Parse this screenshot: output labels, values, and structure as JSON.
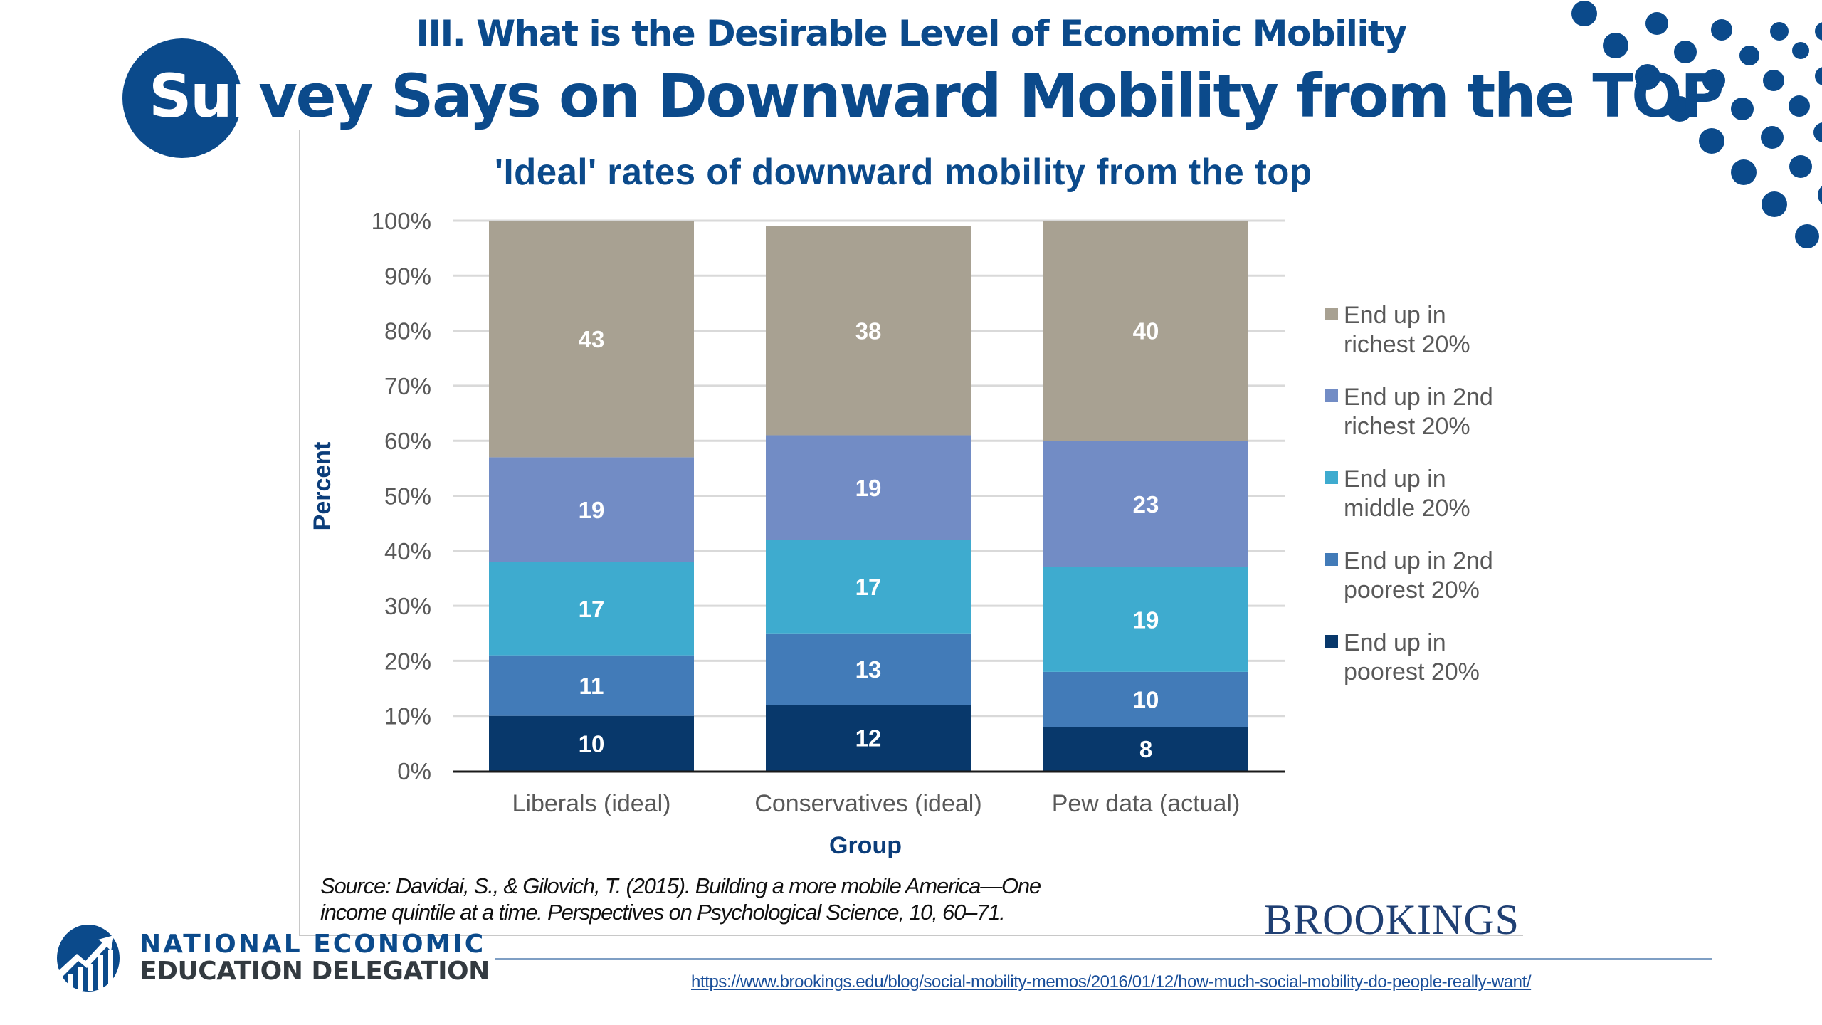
{
  "slide": {
    "section_title": "III. What is the Desirable Level of Economic Mobility",
    "main_title_lead": "Sur",
    "main_title_rest": "vey Says on Downward Mobility from the TOP",
    "source_line1": "Source: Davidai, S., & Gilovich, T. (2015). Building a more mobile America—One",
    "source_line2": "income quintile at a time. Perspectives on Psychological Science, 10, 60–71.",
    "brookings_logo": "BROOKINGS",
    "url": "https://www.brookings.edu/blog/social-mobility-memos/2016/01/12/how-much-social-mobility-do-people-really-want/",
    "org_name_line1": "NATIONAL ECONOMIC",
    "org_name_line2": "EDUCATION DELEGATION",
    "logo_icon": "rising-chart-columns-icon",
    "decoration": "dot-pattern",
    "colors": {
      "brand_blue": "#0b4a8b",
      "richest": "#a8a192",
      "second_richest": "#728cc5",
      "middle": "#3eabcf",
      "second_poorest": "#427bb8",
      "poorest": "#08386b"
    }
  },
  "chart_data": {
    "type": "bar",
    "stacked": true,
    "title": "'Ideal' rates of downward mobility from the top",
    "xlabel": "Group",
    "ylabel": "Percent",
    "ylim": [
      0,
      100
    ],
    "y_ticks": [
      "0%",
      "10%",
      "20%",
      "30%",
      "40%",
      "50%",
      "60%",
      "70%",
      "80%",
      "90%",
      "100%"
    ],
    "grid": true,
    "legend_position": "right",
    "categories": [
      "Liberals (ideal)",
      "Conservatives (ideal)",
      "Pew data (actual)"
    ],
    "series": [
      {
        "name": "End up in poorest 20%",
        "legend_lines": [
          "End up in",
          "poorest 20%"
        ],
        "color": "#08386b",
        "values": [
          10,
          12,
          8
        ]
      },
      {
        "name": "End up in 2nd poorest 20%",
        "legend_lines": [
          "End up in 2nd",
          "poorest 20%"
        ],
        "color": "#427bb8",
        "values": [
          11,
          13,
          10
        ]
      },
      {
        "name": "End up in middle 20%",
        "legend_lines": [
          "End up in",
          "middle 20%"
        ],
        "color": "#3eabcf",
        "values": [
          17,
          17,
          19
        ]
      },
      {
        "name": "End up in 2nd richest 20%",
        "legend_lines": [
          "End up in 2nd",
          "richest 20%"
        ],
        "color": "#728cc5",
        "values": [
          19,
          19,
          23
        ]
      },
      {
        "name": "End up in richest 20%",
        "legend_lines": [
          "End up in",
          "richest 20%"
        ],
        "color": "#a8a192",
        "values": [
          43,
          38,
          40
        ]
      }
    ]
  }
}
